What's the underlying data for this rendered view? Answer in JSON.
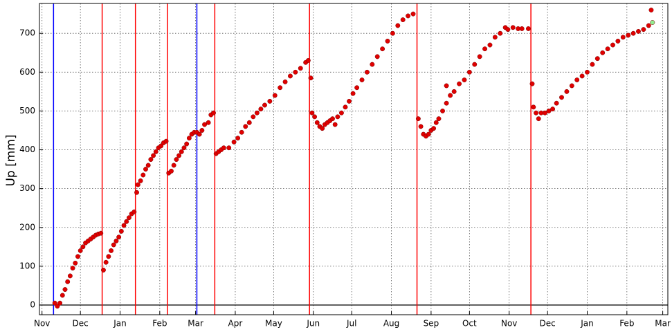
{
  "chart_data": {
    "type": "scatter",
    "ylabel": "Up [mm]",
    "xlim": [
      -2,
      489
    ],
    "ylim": [
      -25,
      777
    ],
    "xticks": [
      {
        "value": 0,
        "label": "Nov"
      },
      {
        "value": 30,
        "label": "Dec"
      },
      {
        "value": 61,
        "label": "Jan"
      },
      {
        "value": 92,
        "label": "Feb"
      },
      {
        "value": 120,
        "label": "Mar"
      },
      {
        "value": 151,
        "label": "Apr"
      },
      {
        "value": 181,
        "label": "May"
      },
      {
        "value": 212,
        "label": "Jun"
      },
      {
        "value": 242,
        "label": "Jul"
      },
      {
        "value": 273,
        "label": "Aug"
      },
      {
        "value": 304,
        "label": "Sep"
      },
      {
        "value": 334,
        "label": "Oct"
      },
      {
        "value": 365,
        "label": "Nov"
      },
      {
        "value": 395,
        "label": "Dec"
      },
      {
        "value": 426,
        "label": "Jan"
      },
      {
        "value": 457,
        "label": "Feb"
      },
      {
        "value": 485,
        "label": "Mar"
      }
    ],
    "yticks": [
      0,
      100,
      200,
      300,
      400,
      500,
      600,
      700
    ],
    "grid": true,
    "vlines": [
      {
        "x": 9,
        "color": "#0000ff"
      },
      {
        "x": 47,
        "color": "#ff0000"
      },
      {
        "x": 73,
        "color": "#ff0000"
      },
      {
        "x": 98,
        "color": "#ff0000"
      },
      {
        "x": 121,
        "color": "#0000ff"
      },
      {
        "x": 135,
        "color": "#ff0000"
      },
      {
        "x": 209,
        "color": "#ff0000"
      },
      {
        "x": 293,
        "color": "#ff0000"
      },
      {
        "x": 382,
        "color": "#ff0000"
      }
    ],
    "series": [
      {
        "color": "#e00000",
        "x": [
          10,
          12,
          14,
          16,
          18,
          20,
          22,
          24,
          26,
          28,
          30,
          32,
          34,
          36,
          38,
          40,
          42,
          44,
          46,
          48,
          50,
          52,
          54,
          56,
          58,
          60,
          62,
          64,
          66,
          68,
          70,
          72,
          74,
          75,
          77,
          79,
          81,
          83,
          85,
          87,
          89,
          91,
          93,
          95,
          97,
          99,
          101,
          103,
          105,
          107,
          109,
          111,
          113,
          115,
          117,
          119,
          121,
          123,
          125,
          127,
          130,
          132,
          134,
          136,
          138,
          140,
          142,
          146,
          150,
          153,
          156,
          159,
          162,
          165,
          168,
          171,
          174,
          178,
          182,
          186,
          190,
          194,
          198,
          202,
          206,
          208,
          210,
          211,
          213,
          215,
          217,
          219,
          221,
          223,
          225,
          227,
          229,
          231,
          234,
          237,
          240,
          243,
          246,
          250,
          254,
          258,
          262,
          266,
          270,
          274,
          278,
          282,
          286,
          290,
          294,
          296,
          298,
          300,
          302,
          304,
          306,
          308,
          310,
          313,
          316,
          316,
          319,
          322,
          326,
          330,
          334,
          338,
          342,
          346,
          350,
          354,
          358,
          362,
          364,
          368,
          372,
          375,
          380,
          383,
          384,
          386,
          388,
          390,
          393,
          396,
          399,
          402,
          406,
          410,
          414,
          418,
          422,
          426,
          430,
          434,
          438,
          442,
          446,
          450,
          454,
          458,
          462,
          466,
          470,
          474,
          476
        ],
        "values": [
          5,
          -3,
          5,
          25,
          40,
          60,
          75,
          95,
          108,
          125,
          140,
          150,
          160,
          165,
          170,
          175,
          180,
          183,
          185,
          90,
          110,
          125,
          140,
          155,
          165,
          175,
          190,
          205,
          215,
          225,
          235,
          240,
          290,
          310,
          320,
          335,
          350,
          360,
          375,
          385,
          395,
          405,
          410,
          418,
          422,
          340,
          345,
          360,
          375,
          385,
          395,
          405,
          415,
          430,
          440,
          445,
          445,
          440,
          450,
          465,
          470,
          490,
          495,
          390,
          395,
          400,
          405,
          405,
          420,
          430,
          445,
          460,
          470,
          485,
          495,
          505,
          515,
          525,
          540,
          560,
          575,
          590,
          600,
          610,
          625,
          630,
          585,
          495,
          485,
          470,
          460,
          455,
          465,
          470,
          475,
          480,
          465,
          485,
          495,
          510,
          525,
          545,
          560,
          580,
          600,
          620,
          640,
          660,
          680,
          700,
          720,
          735,
          745,
          750,
          480,
          460,
          440,
          435,
          440,
          450,
          455,
          470,
          480,
          500,
          520,
          565,
          540,
          550,
          570,
          580,
          600,
          620,
          640,
          660,
          670,
          690,
          700,
          715,
          710,
          715,
          712,
          712,
          712,
          570,
          510,
          495,
          480,
          495,
          495,
          500,
          505,
          520,
          535,
          550,
          565,
          580,
          590,
          600,
          620,
          635,
          650,
          660,
          670,
          680,
          690,
          695,
          700,
          705,
          710,
          720,
          760
        ]
      },
      {
        "color": "#90ee90",
        "x": [
          477
        ],
        "values": [
          728
        ]
      }
    ]
  }
}
